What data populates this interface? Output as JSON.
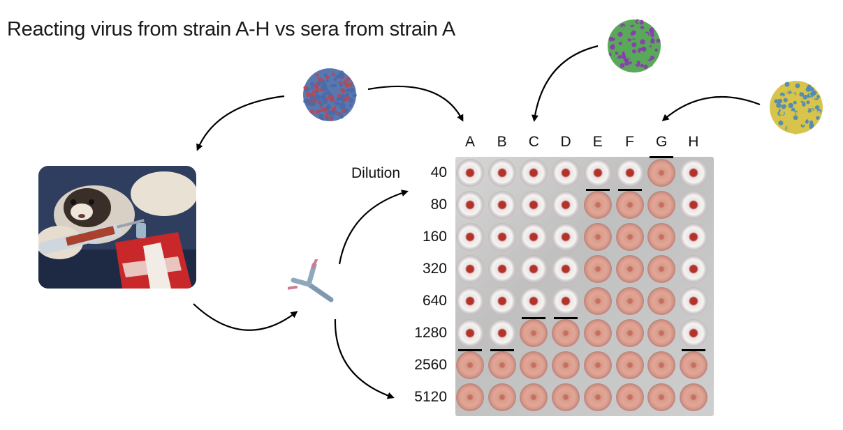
{
  "title": "Reacting virus from strain A-H vs sera from strain A",
  "columns": [
    "A",
    "B",
    "C",
    "D",
    "E",
    "F",
    "G",
    "H"
  ],
  "dilution_label": "Dilution",
  "dilutions": [
    "40",
    "80",
    "160",
    "320",
    "640",
    "1280",
    "2560",
    "5120"
  ],
  "wells": [
    [
      "button",
      "button",
      "button",
      "button",
      "button",
      "button",
      "diffuse",
      "button"
    ],
    [
      "button",
      "button",
      "button",
      "button",
      "diffuse",
      "diffuse",
      "diffuse",
      "button"
    ],
    [
      "button",
      "button",
      "button",
      "button",
      "diffuse",
      "diffuse",
      "diffuse",
      "button"
    ],
    [
      "button",
      "button",
      "button",
      "button",
      "diffuse",
      "diffuse",
      "diffuse",
      "button"
    ],
    [
      "button",
      "button",
      "button",
      "button",
      "diffuse",
      "diffuse",
      "diffuse",
      "button"
    ],
    [
      "button",
      "button",
      "diffuse",
      "diffuse",
      "diffuse",
      "diffuse",
      "diffuse",
      "button"
    ],
    [
      "diffuse",
      "diffuse",
      "diffuse",
      "diffuse",
      "diffuse",
      "diffuse",
      "diffuse",
      "diffuse"
    ],
    [
      "diffuse",
      "diffuse",
      "diffuse",
      "diffuse",
      "diffuse",
      "diffuse",
      "diffuse",
      "diffuse"
    ]
  ],
  "endpoint_after_row": {
    "A": 6,
    "B": 6,
    "C": 5,
    "D": 5,
    "E": 1,
    "F": 1,
    "G": 0,
    "H": 6
  },
  "colors": {
    "virus_a": [
      "#4a6aa8",
      "#b04a5a"
    ],
    "virus_c": [
      "#5aa85a",
      "#8a3ab0"
    ],
    "virus_g": [
      "#d8c44a",
      "#4a8ab8"
    ]
  }
}
